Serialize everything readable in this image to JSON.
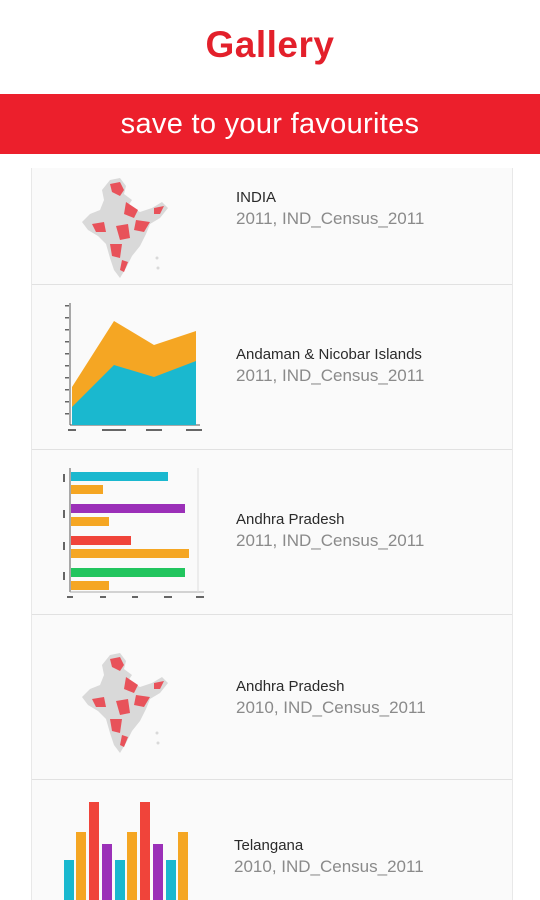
{
  "app": {
    "title": "Gallery",
    "banner": "save to your favourites"
  },
  "items": [
    {
      "title": "INDIA",
      "subtitle": "2011, IND_Census_2011",
      "thumbnail_icon": "india-map-icon"
    },
    {
      "title": "Andaman & Nicobar Islands",
      "subtitle": "2011, IND_Census_2011",
      "thumbnail_icon": "area-chart-icon"
    },
    {
      "title": "Andhra Pradesh",
      "subtitle": "2011, IND_Census_2011",
      "thumbnail_icon": "bar-chart-icon"
    },
    {
      "title": "Andhra Pradesh",
      "subtitle": "2010, IND_Census_2011",
      "thumbnail_icon": "india-map-icon"
    },
    {
      "title": "Telangana",
      "subtitle": "2010, IND_Census_2011",
      "thumbnail_icon": "column-chart-icon"
    }
  ],
  "colors": {
    "brand_red": "#ec1f2c",
    "title_red": "#e3202b",
    "map_gray": "#d9d9d9",
    "map_red": "#e8525a",
    "chart_cyan": "#1ab8cf",
    "chart_orange": "#f5a623",
    "chart_purple": "#9b30b8",
    "chart_red": "#f0443a",
    "chart_green": "#22c55e"
  }
}
